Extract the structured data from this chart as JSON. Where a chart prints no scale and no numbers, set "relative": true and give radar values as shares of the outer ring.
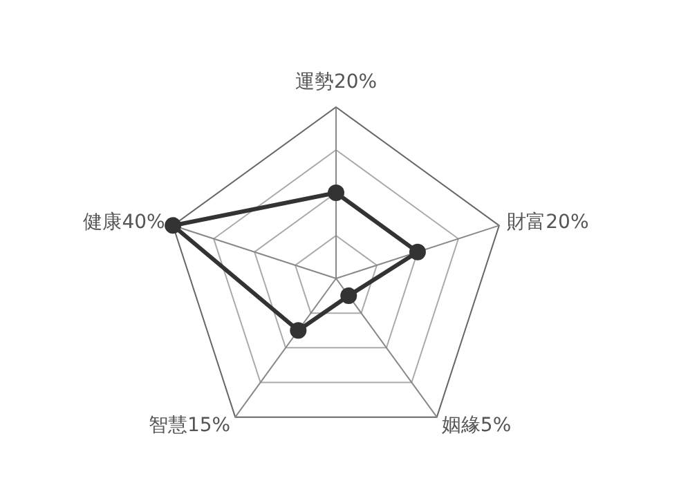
{
  "chart_data": {
    "type": "radar",
    "categories": [
      "運勢20%",
      "財富20%",
      "姻緣5%",
      "智慧15%",
      "健康40%"
    ],
    "relative": true,
    "marker": "circle",
    "series": [
      {
        "color": "#333333",
        "values": [
          0.5,
          0.5,
          0.125,
          0.375,
          1
        ]
      }
    ]
  }
}
